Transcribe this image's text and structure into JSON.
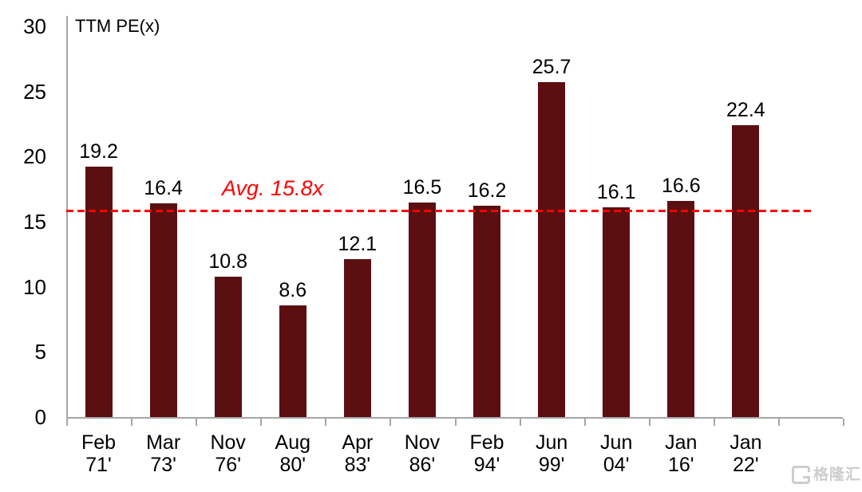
{
  "chart_data": {
    "type": "bar",
    "title": "TTM PE(x)",
    "categories": [
      "Feb 71'",
      "Mar 73'",
      "Nov 76'",
      "Aug 80'",
      "Apr 83'",
      "Nov 86'",
      "Feb 94'",
      "Jun 99'",
      "Jun 04'",
      "Jan 16'",
      "Jan 22'"
    ],
    "values": [
      19.2,
      16.4,
      10.8,
      8.6,
      12.1,
      16.5,
      16.2,
      25.7,
      16.1,
      16.6,
      22.4
    ],
    "value_labels": [
      "19.2",
      "16.4",
      "10.8",
      "8.6",
      "12.1",
      "16.5",
      "16.2",
      "25.7",
      "16.1",
      "16.6",
      "22.4"
    ],
    "xlabel": "",
    "ylabel": "TTM PE(x)",
    "ylim": [
      0,
      30
    ],
    "yticks": [
      0,
      5,
      10,
      15,
      20,
      25,
      30
    ],
    "grid": false,
    "legend": "none",
    "bar_color": "#5c0f10",
    "axis_color": "#a6a6a6",
    "text_color": "#000000",
    "avg_line": {
      "value": 15.8,
      "label": "Avg. 15.8x",
      "color": "#ff0000"
    }
  },
  "watermark": {
    "icon": "gelonghui-logo",
    "text": "格隆汇",
    "color": "#cdcdcd"
  }
}
